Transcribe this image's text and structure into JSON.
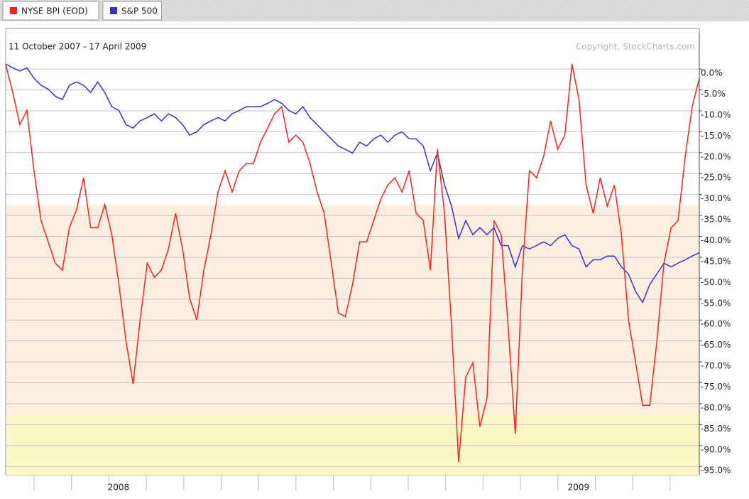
{
  "chart_data": {
    "type": "line",
    "subtitle": "11 October 2007 - 17 April 2009",
    "annotation": "Copyright, StockCharts.com",
    "categories": [
      null,
      null,
      null,
      null,
      null,
      null,
      null,
      null,
      null,
      null,
      null,
      null,
      null,
      null,
      "2008",
      null,
      null,
      null,
      null,
      null,
      null,
      null,
      null,
      null,
      null,
      null,
      null,
      null,
      null,
      null,
      null,
      null,
      null,
      null,
      null,
      null,
      null,
      null,
      null,
      null,
      null,
      null,
      null,
      null,
      null,
      null,
      null,
      null,
      null,
      null,
      null,
      null,
      null,
      null,
      null,
      null,
      null,
      null,
      null,
      null,
      null,
      null,
      null,
      null,
      null,
      null,
      null,
      null,
      null,
      null,
      null,
      null,
      null,
      null,
      null,
      null,
      null,
      null,
      null,
      "2009",
      null,
      null,
      null,
      null,
      null,
      null,
      null,
      null,
      null,
      null,
      null,
      null,
      null,
      null,
      null,
      null,
      null,
      null,
      null
    ],
    "series": [
      {
        "name": "NYSE BPI (EOD)",
        "color": "#ff2020",
        "values": [
          1,
          -5.6,
          -13.3,
          -9.9,
          -24.3,
          -36.2,
          -41.3,
          -46.4,
          -48.1,
          -37.9,
          -33.7,
          -26,
          -37.9,
          -37.9,
          -32.4,
          -39.6,
          -51.5,
          -65.1,
          -75.3,
          -60,
          -46.4,
          -49.8,
          -48.1,
          -43,
          -34.5,
          -43,
          -54.9,
          -60,
          -48.1,
          -39.6,
          -29.4,
          -24.3,
          -29.4,
          -24.3,
          -22.6,
          -22.6,
          -17.5,
          -14.1,
          -10.7,
          -9,
          -17.5,
          -15.8,
          -17.5,
          -22.6,
          -29.4,
          -34.5,
          -46.4,
          -58.3,
          -59.2,
          -51.5,
          -41.3,
          -41.3,
          -36.2,
          -31.1,
          -27.7,
          -26,
          -29.4,
          -24.3,
          -34.5,
          -36.2,
          -48.1,
          -19.2,
          -34.5,
          -61.7,
          -94,
          -73.6,
          -70.2,
          -85.5,
          -78.7,
          -36.2,
          -39.6,
          -61.7,
          -87.2,
          -48.1,
          -24.3,
          -26,
          -20.9,
          -12.4,
          -19.2,
          -15.8,
          1.2,
          -7.3,
          -27.7,
          -34.5,
          -26,
          -32.8,
          -27.7,
          -39.6,
          -60,
          -70.2,
          -80.4,
          -80.4,
          -65.1,
          -46.4,
          -38,
          -36.2,
          -21,
          -9,
          -2.2
        ]
      },
      {
        "name": "S&P 500",
        "color": "#3a2fd0",
        "values": [
          1.2,
          0.3,
          -0.5,
          0.3,
          -2.2,
          -3.9,
          -4.8,
          -6.5,
          -7.3,
          -3.9,
          -3.1,
          -3.9,
          -5.6,
          -3.1,
          -5.6,
          -9,
          -9.9,
          -13.3,
          -14.1,
          -12.4,
          -11.6,
          -10.7,
          -12.4,
          -10.7,
          -11.6,
          -13.3,
          -15.8,
          -15,
          -13.3,
          -12.4,
          -11.6,
          -12.4,
          -10.7,
          -9.9,
          -9,
          -9,
          -9,
          -8.2,
          -7.3,
          -8.2,
          -9.9,
          -10.7,
          -9,
          -11.6,
          -13.3,
          -15,
          -16.7,
          -18.4,
          -19.2,
          -20.1,
          -17.5,
          -18.4,
          -16.7,
          -15.8,
          -17.5,
          -15.8,
          -15,
          -16.7,
          -16.7,
          -18.4,
          -24.3,
          -20.1,
          -27.7,
          -32.8,
          -40.5,
          -36.2,
          -39.6,
          -37.9,
          -39.6,
          -37.9,
          -42.2,
          -42.2,
          -47.3,
          -42.2,
          -43,
          -42.2,
          -41.3,
          -42.2,
          -40.5,
          -39.6,
          -42.2,
          -43,
          -47.3,
          -45.6,
          -45.6,
          -44.7,
          -44.7,
          -47.3,
          -49,
          -53.2,
          -55.8,
          -51.5,
          -49,
          -46.4,
          -47.3,
          -46.4,
          -45.6,
          -44.7,
          -43.9
        ]
      }
    ],
    "ylim": [
      -97,
      9.7
    ],
    "yticks": [
      {
        "value": 0,
        "label": "0.0%"
      },
      {
        "value": -5,
        "label": "-5.0%"
      },
      {
        "value": -10,
        "label": "-10.0%"
      },
      {
        "value": -15,
        "label": "-15.0%"
      },
      {
        "value": -20,
        "label": "-20.0%"
      },
      {
        "value": -25,
        "label": "-25.0%"
      },
      {
        "value": -30,
        "label": "-30.0%"
      },
      {
        "value": -35,
        "label": "-35.0%"
      },
      {
        "value": -40,
        "label": "-40.0%"
      },
      {
        "value": -45,
        "label": "-45.0%"
      },
      {
        "value": -50,
        "label": "-50.0%"
      },
      {
        "value": -55,
        "label": "-55.0%"
      },
      {
        "value": -60,
        "label": "-60.0%"
      },
      {
        "value": -65,
        "label": "-65.0%"
      },
      {
        "value": -70,
        "label": "-70.0%"
      },
      {
        "value": -75,
        "label": "-75.0%"
      },
      {
        "value": -80,
        "label": "-80.0%"
      },
      {
        "value": -85,
        "label": "-85.0%"
      },
      {
        "value": -90,
        "label": "-90.0%"
      },
      {
        "value": -95,
        "label": "-95.0%"
      }
    ],
    "grid": true,
    "bands": [
      {
        "from": -32.5,
        "to": -82.5,
        "color": "#fcefdf"
      },
      {
        "from": -82.5,
        "to": -97,
        "color": "#fbf8c6"
      }
    ]
  }
}
